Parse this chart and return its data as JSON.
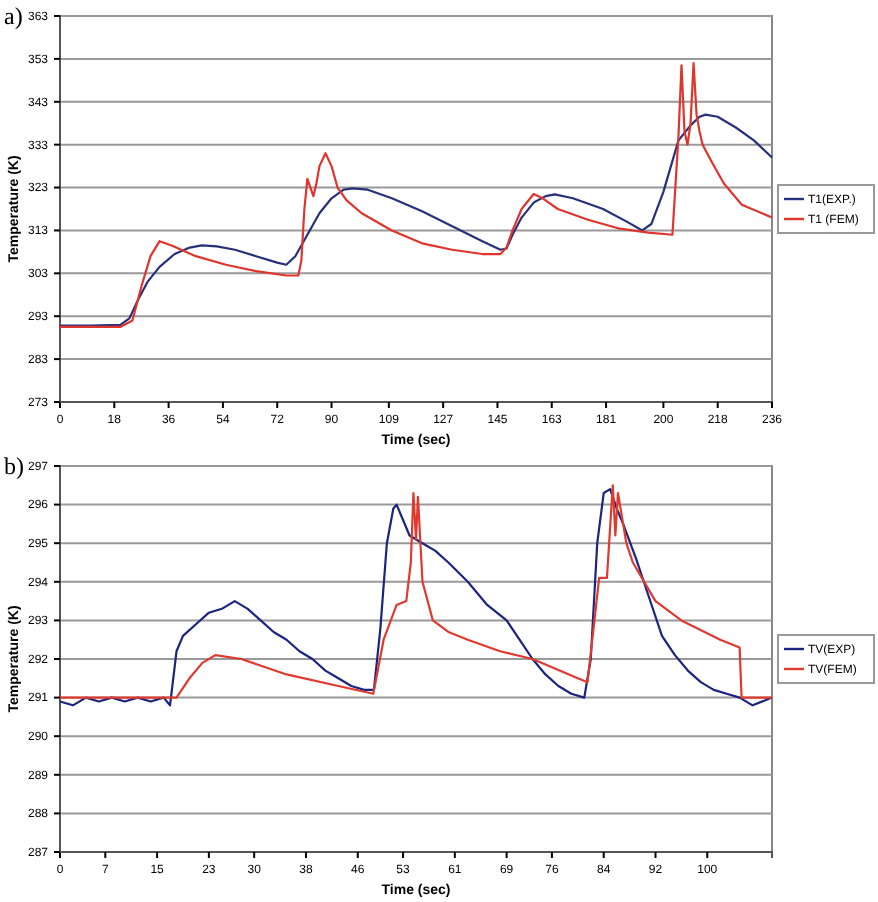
{
  "chart_data": [
    {
      "type": "line",
      "xlabel": "Time (sec)",
      "ylabel": "Temperature (K)",
      "annotations": [
        "a)"
      ],
      "grid": "y",
      "legend": "right",
      "xlim": [
        0,
        236
      ],
      "ylim": [
        273,
        363
      ],
      "yticks": [
        273,
        283,
        293,
        303,
        313,
        323,
        333,
        343,
        353,
        363
      ],
      "xticks": [
        0,
        18,
        36,
        54,
        72,
        90,
        109,
        127,
        145,
        163,
        181,
        200,
        218,
        236
      ],
      "series": [
        {
          "name": "T1(EXP.)",
          "color": "#27307a",
          "x": [
            0,
            10,
            20,
            23,
            26,
            29,
            33,
            38,
            43,
            47,
            52,
            58,
            65,
            72,
            75,
            78,
            82,
            86,
            90,
            94,
            97,
            102,
            110,
            120,
            130,
            140,
            146,
            148,
            150,
            153,
            157,
            161,
            164,
            170,
            180,
            188,
            193,
            196,
            200,
            205,
            209,
            212,
            214,
            218,
            224,
            230,
            236
          ],
          "values": [
            290.8,
            290.8,
            291,
            292.5,
            297,
            301,
            304.5,
            307.5,
            309,
            309.5,
            309.3,
            308.5,
            307,
            305.5,
            305,
            307,
            312,
            317,
            320.5,
            322.5,
            322.8,
            322.5,
            320.5,
            317.5,
            314,
            310.5,
            308.5,
            308.8,
            312,
            316,
            319.5,
            321,
            321.4,
            320.5,
            318,
            315,
            313,
            314.5,
            322,
            334,
            337.5,
            339.5,
            340,
            339.5,
            337,
            334,
            330
          ]
        },
        {
          "name": "T1 (FEM)",
          "color": "#e0352d",
          "x": [
            0,
            10,
            20,
            24,
            27,
            30,
            33,
            37,
            45,
            55,
            65,
            75,
            79,
            80,
            81,
            82,
            83,
            84,
            85,
            86,
            88,
            90,
            92,
            95,
            100,
            110,
            120,
            130,
            140,
            146,
            148,
            150,
            153,
            157,
            160,
            165,
            175,
            185,
            195,
            203,
            205,
            206,
            207,
            208,
            209,
            210,
            211,
            212,
            213,
            216,
            220,
            226,
            236
          ],
          "values": [
            290.5,
            290.5,
            290.5,
            292,
            300,
            307,
            310.5,
            309.5,
            307,
            305,
            303.5,
            302.5,
            302.5,
            306,
            318,
            325,
            323,
            321,
            324,
            328,
            331,
            328,
            323,
            320,
            317,
            313,
            310,
            308.5,
            307.5,
            307.5,
            309,
            313,
            318,
            321.5,
            320.5,
            318,
            315.5,
            313.5,
            312.5,
            312,
            335,
            351.5,
            336,
            333,
            338,
            352,
            340,
            336,
            333,
            329,
            324,
            319,
            316
          ]
        }
      ]
    },
    {
      "type": "line",
      "xlabel": "Time (sec)",
      "ylabel": "Temperature (K)",
      "annotations": [
        "b)"
      ],
      "grid": "y",
      "legend": "right",
      "xlim": [
        0,
        110
      ],
      "ylim": [
        287,
        297
      ],
      "yticks": [
        287,
        288,
        289,
        290,
        291,
        292,
        293,
        294,
        295,
        296,
        297
      ],
      "xticks": [
        0,
        7,
        15,
        23,
        30,
        38,
        46,
        53,
        61,
        69,
        76,
        84,
        92,
        100
      ],
      "series": [
        {
          "name": "TV(EXP)",
          "color": "#1c2480",
          "x": [
            0,
            2,
            4,
            6,
            8,
            10,
            12,
            14,
            16,
            17,
            18,
            19,
            21,
            23,
            25,
            27,
            29,
            31,
            33,
            35,
            37,
            39,
            41,
            43,
            45,
            47,
            48.5,
            49.5,
            50.5,
            51.5,
            52,
            53,
            54,
            56,
            58,
            60,
            63,
            66,
            69,
            71,
            73,
            75,
            77,
            79,
            81,
            82,
            83,
            84,
            85,
            86,
            87,
            89,
            91,
            93,
            95,
            97,
            99,
            101,
            103,
            105,
            107,
            110
          ],
          "values": [
            290.9,
            290.8,
            291,
            290.9,
            291,
            290.9,
            291,
            290.9,
            291,
            290.8,
            292.2,
            292.6,
            292.9,
            293.2,
            293.3,
            293.5,
            293.3,
            293,
            292.7,
            292.5,
            292.2,
            292,
            291.7,
            291.5,
            291.3,
            291.2,
            291.2,
            292.8,
            295,
            295.9,
            296,
            295.6,
            295.2,
            295,
            294.8,
            294.5,
            294,
            293.4,
            293,
            292.5,
            292,
            291.6,
            291.3,
            291.1,
            291,
            292,
            295,
            296.3,
            296.4,
            295.9,
            295.5,
            294.6,
            293.6,
            292.6,
            292.1,
            291.7,
            291.4,
            291.2,
            291.1,
            291,
            290.8,
            291
          ]
        },
        {
          "name": "TV(FEM)",
          "color": "#e03a2f",
          "x": [
            0,
            10,
            18,
            20,
            22,
            24,
            28,
            35,
            43,
            48.4,
            50,
            52,
            53.5,
            54.2,
            54.6,
            55,
            55.3,
            56,
            57.6,
            60,
            63,
            68,
            73,
            80,
            81.5,
            83.3,
            84.5,
            85.4,
            85.8,
            86.2,
            87.5,
            88.5,
            92,
            96,
            102,
            105,
            105.3,
            110
          ],
          "values": [
            291,
            291,
            291,
            291.5,
            291.9,
            292.1,
            292,
            291.6,
            291.3,
            291.1,
            292.5,
            293.4,
            293.5,
            294.5,
            296.3,
            295.1,
            296.2,
            294,
            293,
            292.7,
            292.5,
            292.2,
            292,
            291.5,
            291.4,
            294.1,
            294.1,
            296.5,
            295.2,
            296.3,
            295,
            294.5,
            293.5,
            293,
            292.5,
            292.3,
            291,
            291
          ]
        }
      ]
    }
  ]
}
